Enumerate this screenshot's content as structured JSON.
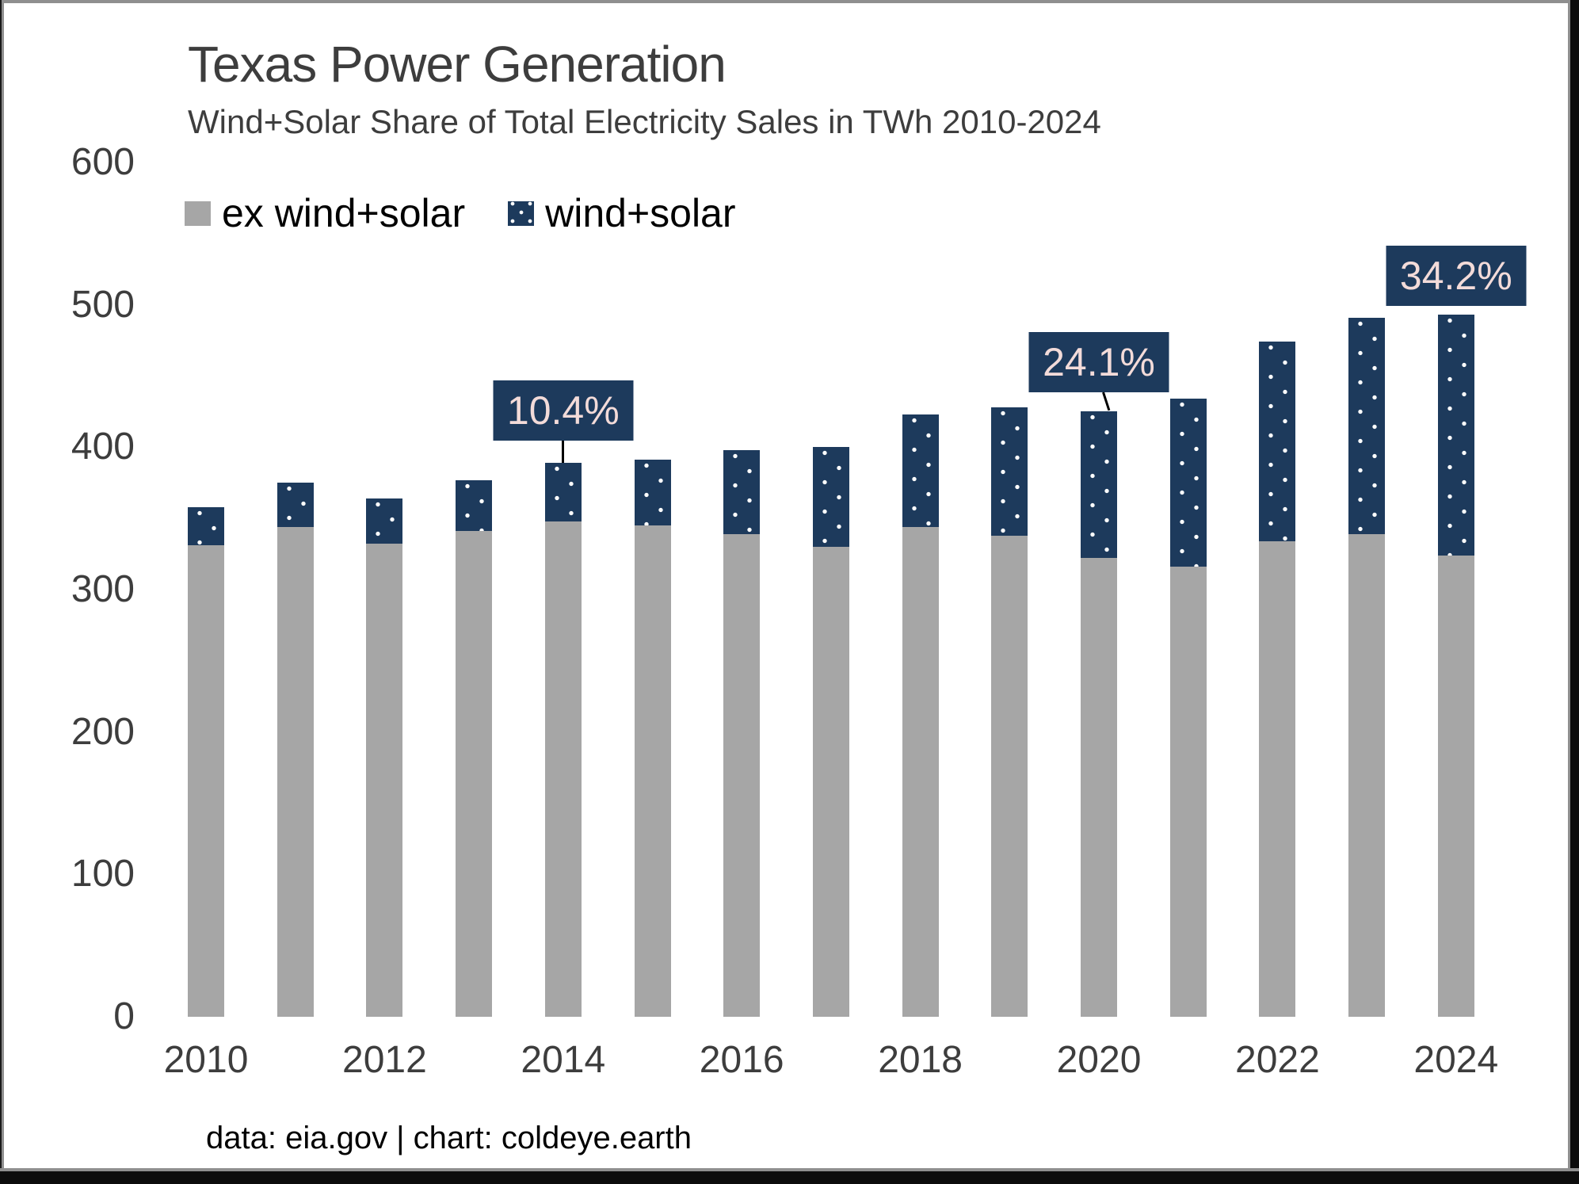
{
  "title": "Texas Power Generation",
  "subtitle": "Wind+Solar Share of Total Electricity Sales in TWh 2010-2024",
  "legend": [
    {
      "label": "ex wind+solar",
      "color": "#a6a6a6"
    },
    {
      "label": "wind+solar",
      "color": "#1d3a5c"
    }
  ],
  "footer": "data: eia.gov | chart: coldeye.earth",
  "colors": {
    "bar_gray": "#a6a6a6",
    "bar_navy": "#1d3a5c",
    "callout_bg": "#1d3a5c",
    "callout_text": "#f3dbd9",
    "axis_text": "#3d3d3d"
  },
  "chart_data": {
    "type": "bar",
    "stacked": true,
    "title": "Texas Power Generation",
    "subtitle": "Wind+Solar Share of Total Electricity Sales in TWh 2010-2024",
    "xlabel": "",
    "ylabel": "",
    "ylim": [
      0,
      600
    ],
    "grid": false,
    "legend_position": "top-left",
    "categories": [
      2010,
      2011,
      2012,
      2013,
      2014,
      2015,
      2016,
      2017,
      2018,
      2019,
      2020,
      2021,
      2022,
      2023,
      2024
    ],
    "series": [
      {
        "name": "ex wind+solar",
        "color": "#a6a6a6",
        "values": [
          331,
          344,
          332,
          341,
          348,
          345,
          339,
          330,
          344,
          338,
          322,
          316,
          334,
          339,
          324
        ]
      },
      {
        "name": "wind+solar",
        "color": "#1d3a5c",
        "values": [
          27,
          31,
          32,
          36,
          41,
          46,
          59,
          70,
          79,
          90,
          103,
          118,
          140,
          152,
          169
        ]
      }
    ],
    "totals": [
      358,
      375,
      364,
      377,
      389,
      391,
      398,
      400,
      423,
      428,
      425,
      434,
      474,
      491,
      493
    ],
    "y_ticks": [
      0,
      100,
      200,
      300,
      400,
      500,
      600
    ],
    "x_ticks": [
      2010,
      2012,
      2014,
      2016,
      2018,
      2020,
      2022,
      2024
    ],
    "annotations": [
      {
        "year": 2014,
        "label": "10.4%",
        "box_top": 480,
        "connector": true
      },
      {
        "year": 2020,
        "label": "24.1%",
        "box_top": 419,
        "connector": true
      },
      {
        "year": 2024,
        "label": "34.2%",
        "box_top": 310,
        "connector": false
      }
    ]
  }
}
